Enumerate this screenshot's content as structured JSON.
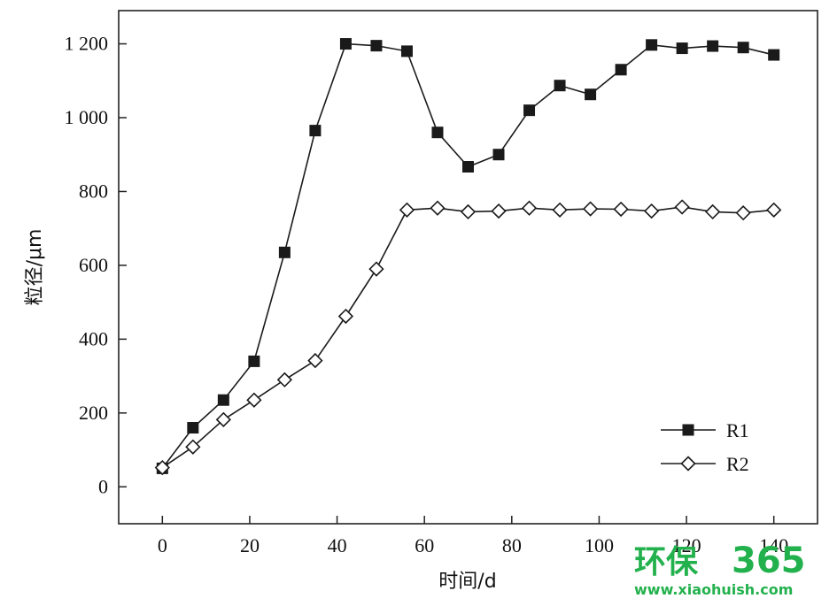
{
  "chart_data": {
    "type": "line",
    "title": "",
    "xlabel": "时间/d",
    "ylabel": "粒径/μm",
    "xlim": [
      -10,
      150
    ],
    "ylim": [
      -100,
      1290
    ],
    "xticks": [
      0,
      20,
      40,
      60,
      80,
      100,
      120,
      140
    ],
    "xtick_labels": [
      "0",
      "20",
      "40",
      "60",
      "80",
      "100",
      "120",
      "140"
    ],
    "yticks": [
      0,
      200,
      400,
      600,
      800,
      1000,
      1200
    ],
    "ytick_labels": [
      "0",
      "200",
      "400",
      "600",
      "800",
      "1 000",
      "1 200"
    ],
    "grid": false,
    "legend_position": "bottom-right",
    "x": [
      0,
      7,
      14,
      21,
      28,
      35,
      42,
      49,
      56,
      63,
      70,
      77,
      84,
      91,
      98,
      105,
      112,
      119,
      126,
      133,
      140
    ],
    "series": [
      {
        "name": "R1",
        "marker": "filled-square",
        "color": "#1a1a1a",
        "values": [
          50,
          160,
          235,
          340,
          635,
          965,
          1200,
          1195,
          1180,
          960,
          867,
          900,
          1020,
          1087,
          1063,
          1130,
          1197,
          1188,
          1194,
          1190,
          1170
        ]
      },
      {
        "name": "R2",
        "marker": "open-diamond",
        "color": "#1a1a1a",
        "values": [
          52,
          108,
          182,
          235,
          290,
          342,
          462,
          590,
          750,
          755,
          745,
          747,
          755,
          750,
          753,
          752,
          747,
          758,
          745,
          742,
          750
        ]
      }
    ]
  },
  "watermark": {
    "brand": "环保",
    "number": "365",
    "url": "www.xiaohuish.com",
    "color": "#22b14c"
  }
}
